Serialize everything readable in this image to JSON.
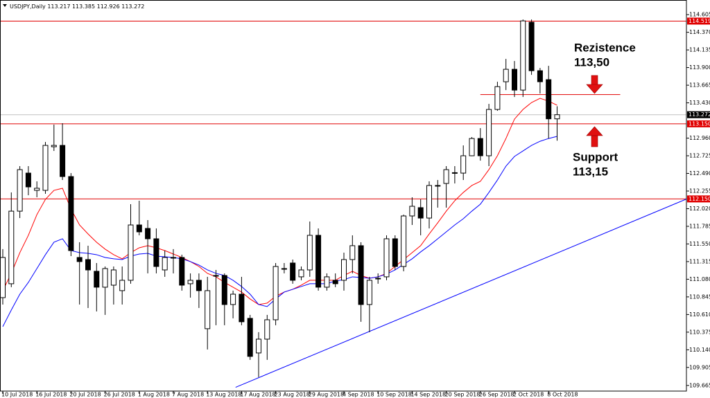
{
  "chart_data": {
    "type": "candlestick",
    "title": "USDJPY,Daily",
    "categories": [
      "10 Jul 2018",
      null,
      null,
      null,
      "16 Jul 2018",
      null,
      null,
      null,
      "20 Jul 2018",
      null,
      null,
      null,
      "26 Jul 2018",
      null,
      null,
      null,
      "1 Aug 2018",
      null,
      null,
      null,
      "7 Aug 2018",
      null,
      null,
      null,
      "13 Aug 2018",
      null,
      null,
      null,
      "17 Aug 2018",
      null,
      null,
      null,
      "23 Aug 2018",
      null,
      null,
      null,
      "29 Aug 2018",
      null,
      null,
      null,
      "4 Sep 2018",
      null,
      null,
      null,
      "10 Sep 2018",
      null,
      null,
      null,
      "14 Sep 2018",
      null,
      null,
      null,
      "20 Sep 2018",
      null,
      null,
      null,
      "26 Sep 2018",
      null,
      null,
      null,
      "2 Oct 2018",
      null,
      null,
      null,
      "8 Oct 2018",
      null
    ],
    "open": [
      110.835,
      111.02,
      111.987,
      112.494,
      112.264,
      112.264,
      112.845,
      112.863,
      112.448,
      111.37,
      111.342,
      111.186,
      110.974,
      111.001,
      110.928,
      111.066,
      111.803,
      111.757,
      111.619,
      111.204,
      111.37,
      111.37,
      111.02,
      111.066,
      110.421,
      111.13,
      111.13,
      110.743,
      110.881,
      110.559,
      110.098,
      110.282,
      110.54,
      111.222,
      111.296,
      111.112,
      111.204,
      111.665,
      110.974,
      111.066,
      111.066,
      111.342,
      111.527,
      110.743,
      111.093,
      111.112,
      111.619,
      111.25,
      111.923,
      112.034,
      111.895,
      112.329,
      112.356,
      112.494,
      112.494,
      112.725,
      112.955,
      112.725,
      113.342,
      113.711,
      113.877,
      113.6,
      114.504,
      113.858,
      113.739,
      113.217
    ],
    "high": [
      111.481,
      112.236,
      112.587,
      112.587,
      112.384,
      112.909,
      113.14,
      113.158,
      112.494,
      111.573,
      111.527,
      111.296,
      111.25,
      111.25,
      111.25,
      112.08,
      112.126,
      111.868,
      111.757,
      111.462,
      111.481,
      111.407,
      111.158,
      111.158,
      111.112,
      111.204,
      111.158,
      110.928,
      111.112,
      110.605,
      110.375,
      110.605,
      111.296,
      111.296,
      111.342,
      111.25,
      111.849,
      111.757,
      111.158,
      111.158,
      111.434,
      111.665,
      111.573,
      111.112,
      111.158,
      111.665,
      111.665,
      111.941,
      112.172,
      112.144,
      112.384,
      112.402,
      112.587,
      112.587,
      112.863,
      112.974,
      113.093,
      113.416,
      113.711,
      114.015,
      113.987,
      114.54,
      114.54,
      113.895,
      113.923,
      113.385
    ],
    "low": [
      110.743,
      110.974,
      111.895,
      112.199,
      112.172,
      112.218,
      112.789,
      112.402,
      111.388,
      110.743,
      110.697,
      110.651,
      110.605,
      110.743,
      110.743,
      111.02,
      111.665,
      111.158,
      111.158,
      111.112,
      111.158,
      110.928,
      110.835,
      110.697,
      110.144,
      110.467,
      110.467,
      110.559,
      110.467,
      110.006,
      109.776,
      110.006,
      110.467,
      111.158,
      111.02,
      111.066,
      111.112,
      110.928,
      110.928,
      110.974,
      110.928,
      111.158,
      110.513,
      110.375,
      111.02,
      111.066,
      111.204,
      111.186,
      111.803,
      111.665,
      111.757,
      112.034,
      112.034,
      112.356,
      112.402,
      112.72,
      112.66,
      112.587,
      113.324,
      113.6,
      113.508,
      113.508,
      113.803,
      113.554,
      112.955,
      112.926
    ],
    "close": [
      111.37,
      111.987,
      112.54,
      112.31,
      112.292,
      112.863,
      112.863,
      112.448,
      111.462,
      111.315,
      111.204,
      110.974,
      111.222,
      111.204,
      111.066,
      111.803,
      111.711,
      111.619,
      111.25,
      111.37,
      111.365,
      111.001,
      111.066,
      110.928,
      110.928,
      111.125,
      110.743,
      110.881,
      110.513,
      110.052,
      110.282,
      110.54,
      111.25,
      111.215,
      111.066,
      111.204,
      111.665,
      110.974,
      111.112,
      111.02,
      111.342,
      111.527,
      110.743,
      111.066,
      111.088,
      111.619,
      111.25,
      111.923,
      112.052,
      111.895,
      112.329,
      112.322,
      112.54,
      112.5,
      112.725,
      112.955,
      112.725,
      113.342,
      113.646,
      113.877,
      113.6,
      114.522,
      113.858,
      113.711,
      113.217,
      113.272
    ],
    "up_color": "#ffffff",
    "down_color": "#000000",
    "ylim": [
      109.59,
      114.8
    ],
    "yticks": [
      114.605,
      {
        "value": 114.37,
        "label": "114.370"
      },
      114.135,
      {
        "value": 113.9,
        "label": "113.900"
      },
      113.665,
      {
        "value": 113.43,
        "label": "113.430"
      },
      {
        "value": 112.96,
        "label": "112.960"
      },
      112.725,
      {
        "value": 112.49,
        "label": "112.490"
      },
      112.255,
      {
        "value": 112.02,
        "label": "112.020"
      },
      111.785,
      {
        "value": 111.55,
        "label": "111.550"
      },
      111.315,
      {
        "value": 111.08,
        "label": "111.080"
      },
      110.845,
      {
        "value": 110.61,
        "label": "110.610"
      },
      110.375,
      {
        "value": 110.14,
        "label": "110.140"
      },
      109.905,
      109.665
    ],
    "lines": [
      {
        "color": "#ff0000",
        "values": [
          110.928,
          111.158,
          111.434,
          111.665,
          111.941,
          112.144,
          112.264,
          112.292,
          112.015,
          111.803,
          111.683,
          111.573,
          111.481,
          111.407,
          111.352,
          111.434,
          111.499,
          111.527,
          111.499,
          111.462,
          111.416,
          111.37,
          111.315,
          111.25,
          111.158,
          111.112,
          111.038,
          110.974,
          110.909,
          110.817,
          110.743,
          110.762,
          110.854,
          110.909,
          110.946,
          111.001,
          111.066,
          111.066,
          111.066,
          111.066,
          111.13,
          111.186,
          111.13,
          111.093,
          111.112,
          111.158,
          111.25,
          111.342,
          111.434,
          111.527,
          111.683,
          111.831,
          111.987,
          112.126,
          112.236,
          112.329,
          112.384,
          112.54,
          112.725,
          112.955,
          113.213,
          113.342,
          113.434,
          113.49,
          113.453,
          113.398
        ]
      },
      {
        "color": "#0000ff",
        "values": [
          110.448,
          110.67,
          110.881,
          111.038,
          111.222,
          111.407,
          111.573,
          111.619,
          111.462,
          111.434,
          111.425,
          111.407,
          111.37,
          111.352,
          111.342,
          111.388,
          111.416,
          111.425,
          111.388,
          111.379,
          111.37,
          111.352,
          111.315,
          111.269,
          111.204,
          111.158,
          111.13,
          111.066,
          110.983,
          110.881,
          110.743,
          110.716,
          110.817,
          110.909,
          110.946,
          110.983,
          111.02,
          111.02,
          111.02,
          111.057,
          111.075,
          111.112,
          111.103,
          111.093,
          111.112,
          111.149,
          111.204,
          111.278,
          111.352,
          111.444,
          111.527,
          111.619,
          111.711,
          111.803,
          111.886,
          111.987,
          112.08,
          112.236,
          112.402,
          112.587,
          112.716,
          112.789,
          112.863,
          112.918,
          112.955,
          112.983
        ]
      }
    ],
    "levels": [
      {
        "value": 114.519,
        "color": "#e00000"
      },
      {
        "value": 113.15,
        "label": "113.150",
        "color": "#e00000"
      },
      {
        "value": 112.15,
        "label": "112.150",
        "color": "#e00000"
      },
      {
        "value": 113.54,
        "color": "#e00000",
        "span": [
          56,
          72.4
        ]
      }
    ],
    "last_price_color": "#c0c0c0",
    "trendlines": [
      {
        "color": "#0000ff",
        "points": [
          [
            27.3,
            109.64
          ],
          [
            80.2,
            112.15
          ]
        ]
      }
    ],
    "annotations": [
      {
        "lines": [
          "Rezistence",
          "113,50"
        ]
      },
      {
        "lines": [
          "Support",
          "113,15"
        ]
      }
    ]
  }
}
